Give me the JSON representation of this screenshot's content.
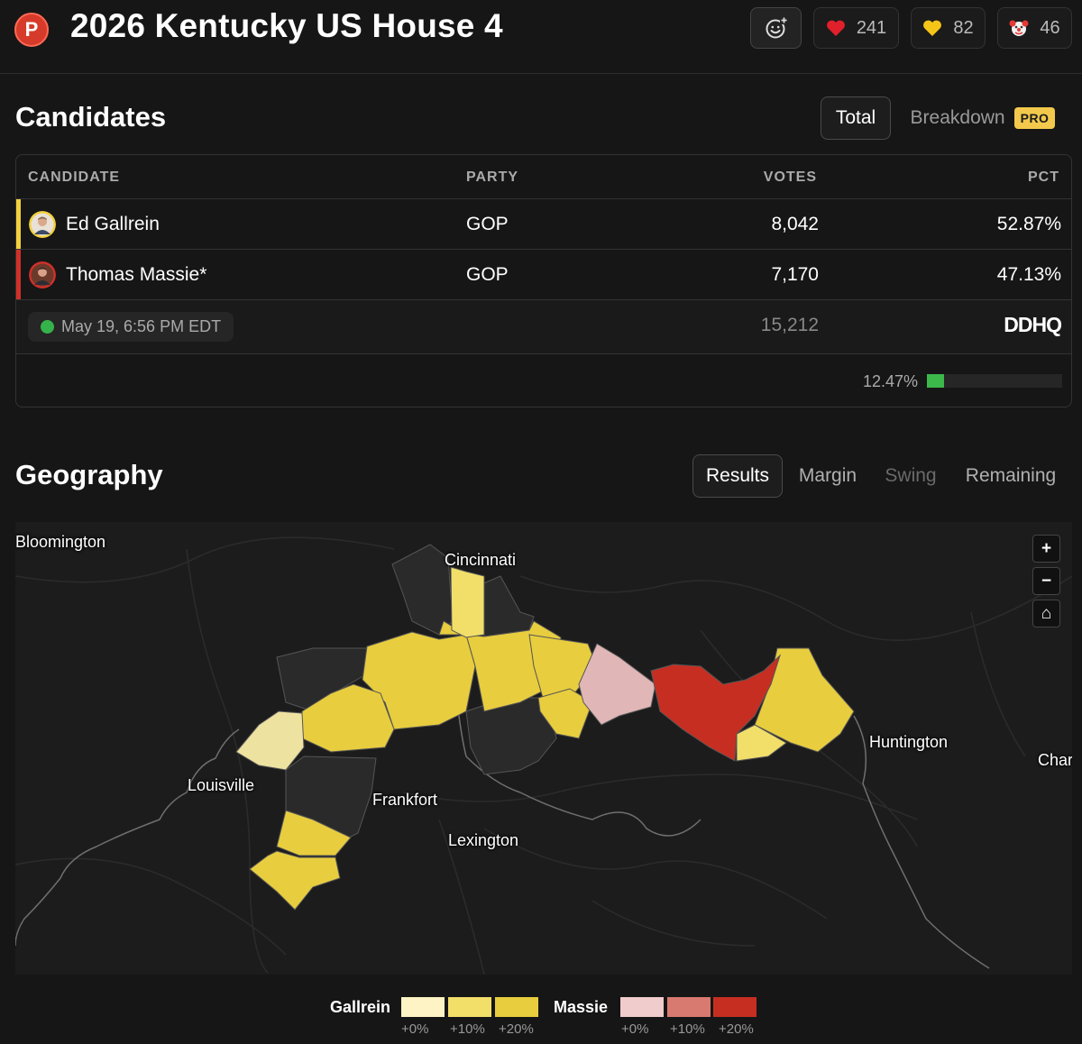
{
  "header": {
    "logo_letter": "P",
    "title": "2026 Kentucky US House 4",
    "reactions": [
      {
        "icon": "heart-icon",
        "count": "241"
      },
      {
        "icon": "yellow-heart-icon",
        "count": "82"
      },
      {
        "icon": "clown-icon",
        "count": "46"
      }
    ]
  },
  "candidates": {
    "title": "Candidates",
    "toggle_total": "Total",
    "toggle_breakdown": "Breakdown",
    "pro_badge": "PRO",
    "columns": {
      "candidate": "CANDIDATE",
      "party": "PARTY",
      "votes": "VOTES",
      "pct": "PCT"
    },
    "rows": [
      {
        "name": "Ed Gallrein",
        "party": "GOP",
        "votes": "8,042",
        "pct": "52.87%",
        "color": "#f2d040"
      },
      {
        "name": "Thomas Massie*",
        "party": "GOP",
        "votes": "7,170",
        "pct": "47.13%",
        "color": "#d0302a"
      }
    ],
    "timestamp": "May 19, 6:56 PM EDT",
    "total_votes": "15,212",
    "source": "DDHQ",
    "reporting_pct_label": "12.47%",
    "reporting_fraction": 0.1247
  },
  "geography": {
    "title": "Geography",
    "tabs": [
      "Results",
      "Margin",
      "Swing",
      "Remaining"
    ],
    "active_tab": "Results",
    "cities": [
      "Bloomington",
      "Cincinnati",
      "Huntington",
      "Char",
      "Louisville",
      "Frankfort",
      "Lexington"
    ],
    "zoom_in": "+",
    "zoom_out": "−",
    "home": "⌂"
  },
  "legend": {
    "gallrein": {
      "name": "Gallrein",
      "labels": [
        "+0%",
        "+10%",
        "+20%"
      ],
      "colors": [
        "#fdf3c4",
        "#f2df6a",
        "#e8cd3e"
      ]
    },
    "massie": {
      "name": "Massie",
      "labels": [
        "+0%",
        "+10%",
        "+20%"
      ],
      "colors": [
        "#f0cccc",
        "#d97a70",
        "#c72e22"
      ]
    }
  }
}
